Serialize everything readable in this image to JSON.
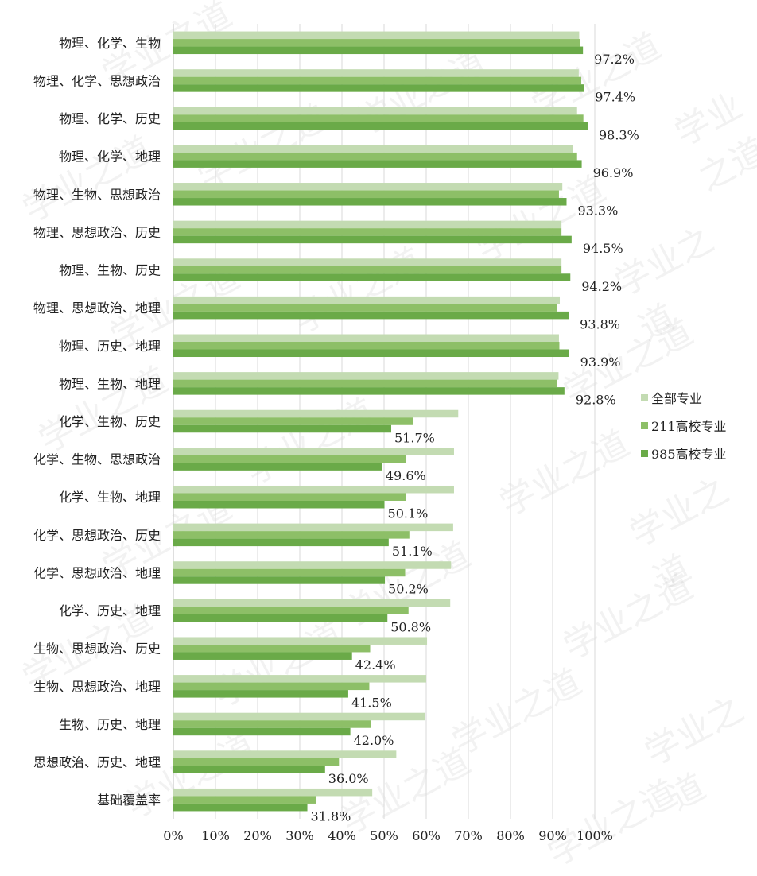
{
  "chart_data": {
    "type": "bar",
    "orientation": "horizontal",
    "categories": [
      "物理、化学、生物",
      "物理、化学、思想政治",
      "物理、化学、历史",
      "物理、化学、地理",
      "物理、生物、思想政治",
      "物理、思想政治、历史",
      "物理、生物、历史",
      "物理、思想政治、地理",
      "物理、历史、地理",
      "物理、生物、地理",
      "化学、生物、历史",
      "化学、生物、思想政治",
      "化学、生物、地理",
      "化学、思想政治、历史",
      "化学、思想政治、地理",
      "化学、历史、地理",
      "生物、思想政治、历史",
      "生物、思想政治、地理",
      "生物、历史、地理",
      "思想政治、历史、地理",
      "基础覆盖率"
    ],
    "series": [
      {
        "name": "全部专业",
        "color": "#c3dbb2",
        "values": [
          96.3,
          96.2,
          95.8,
          94.9,
          92.3,
          92.1,
          92.1,
          91.7,
          91.5,
          91.4,
          67.6,
          66.6,
          66.6,
          66.4,
          65.9,
          65.7,
          60.2,
          60.0,
          59.8,
          52.9,
          47.2
        ]
      },
      {
        "name": "211高校专业",
        "color": "#8dbf67",
        "values": [
          96.6,
          96.8,
          97.3,
          95.8,
          91.5,
          92.1,
          92.1,
          91.0,
          91.6,
          91.1,
          56.9,
          55.1,
          55.2,
          56.0,
          55.0,
          55.8,
          46.7,
          46.5,
          46.8,
          39.3,
          33.9
        ]
      },
      {
        "name": "985高校专业",
        "color": "#6aaa48",
        "values": [
          97.2,
          97.4,
          98.3,
          96.9,
          93.3,
          94.5,
          94.2,
          93.8,
          93.9,
          92.8,
          51.7,
          49.6,
          50.1,
          51.1,
          50.2,
          50.8,
          42.4,
          41.5,
          42.0,
          36.0,
          31.8
        ]
      }
    ],
    "data_labels": [
      "97.2%",
      "97.4%",
      "98.3%",
      "96.9%",
      "93.3%",
      "94.5%",
      "94.2%",
      "93.8%",
      "93.9%",
      "92.8%",
      "51.7%",
      "49.6%",
      "50.1%",
      "51.1%",
      "50.2%",
      "50.8%",
      "42.4%",
      "41.5%",
      "42.0%",
      "36.0%",
      "31.8%"
    ],
    "x_ticks": [
      "0%",
      "10%",
      "20%",
      "30%",
      "40%",
      "50%",
      "60%",
      "70%",
      "80%",
      "90%",
      "100%"
    ],
    "xlim": [
      0,
      100
    ],
    "grid": "vertical",
    "legend_position": "right",
    "title": "",
    "xlabel": "",
    "ylabel": ""
  },
  "watermark": "学业之道"
}
